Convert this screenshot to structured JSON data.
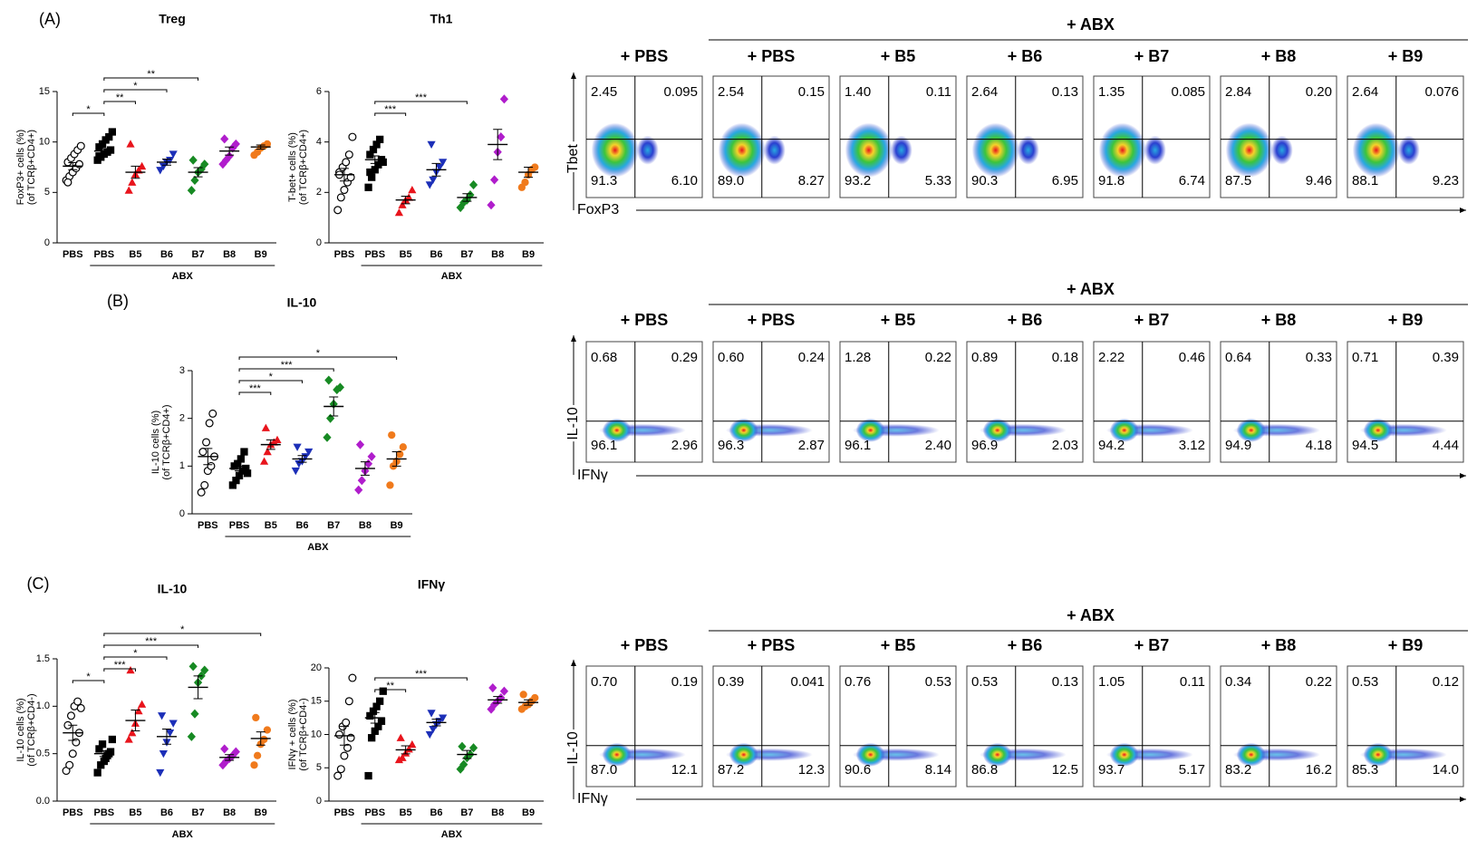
{
  "chart_data": [
    {
      "type": "dot",
      "panel_label": "(A)",
      "title": "Treg",
      "ylabel": [
        "FoxP3+ cells (%)",
        "(of TCRβ+CD4+)"
      ],
      "group_label": "ABX",
      "categories": [
        "PBS",
        "PBS",
        "B5",
        "B6",
        "B7",
        "B8",
        "B9"
      ],
      "markers": [
        "circle-open",
        "square",
        "triangle",
        "triangle-down",
        "diamond",
        "diamond",
        "circle"
      ],
      "colors": [
        "#000000",
        "#000000",
        "#e8141c",
        "#1c2fb8",
        "#178a23",
        "#b01dcc",
        "#f07a1c"
      ],
      "ylim": [
        0,
        15
      ],
      "yticks": [
        0,
        5,
        10,
        15
      ],
      "points": [
        [
          6.2,
          6.6,
          7.0,
          7.4,
          7.8,
          8.0,
          8.4,
          8.8,
          9.2,
          9.6,
          6.0
        ],
        [
          8.2,
          8.5,
          8.8,
          9.0,
          9.2,
          9.5,
          9.8,
          10.2,
          10.5,
          11.0,
          8.6
        ],
        [
          5.2,
          6.0,
          6.8,
          7.2,
          7.6,
          9.8
        ],
        [
          7.2,
          7.6,
          8.0,
          8.2,
          8.8
        ],
        [
          5.2,
          6.2,
          7.0,
          7.3,
          7.8,
          8.2
        ],
        [
          7.8,
          8.2,
          8.6,
          9.4,
          9.8,
          10.3
        ],
        [
          8.7,
          9.0,
          9.4,
          9.6,
          9.8
        ]
      ],
      "means": [
        7.6,
        9.1,
        7.0,
        8.0,
        7.0,
        9.1,
        9.5
      ],
      "sem": [
        0.35,
        0.25,
        0.6,
        0.3,
        0.45,
        0.4,
        0.2
      ],
      "brackets": [
        {
          "groups": [
            0,
            1
          ],
          "label": "*"
        },
        {
          "groups": [
            1,
            2
          ],
          "label": "**"
        },
        {
          "groups": [
            1,
            3
          ],
          "label": "*"
        },
        {
          "groups": [
            1,
            4
          ],
          "label": "**"
        }
      ]
    },
    {
      "type": "dot",
      "title": "Th1",
      "ylabel": [
        "T-bet+ cells (%)",
        "(of TCRβ+CD4+)"
      ],
      "group_label": "ABX",
      "categories": [
        "PBS",
        "PBS",
        "B5",
        "B6",
        "B7",
        "B8",
        "B9"
      ],
      "markers": [
        "circle-open",
        "square",
        "triangle",
        "triangle-down",
        "diamond",
        "diamond",
        "circle"
      ],
      "colors": [
        "#000000",
        "#000000",
        "#e8141c",
        "#1c2fb8",
        "#178a23",
        "#b01dcc",
        "#f07a1c"
      ],
      "ylim": [
        0,
        6
      ],
      "yticks": [
        0,
        2,
        4,
        6
      ],
      "points": [
        [
          1.3,
          1.8,
          2.1,
          2.4,
          2.6,
          2.8,
          3.0,
          3.2,
          3.5,
          4.2,
          2.7
        ],
        [
          2.2,
          2.6,
          2.9,
          3.1,
          3.3,
          3.5,
          3.7,
          3.9,
          4.1,
          3.2,
          2.8
        ],
        [
          1.2,
          1.5,
          1.7,
          1.8,
          2.1
        ],
        [
          2.3,
          2.5,
          2.8,
          3.0,
          3.2,
          3.9
        ],
        [
          1.4,
          1.6,
          1.7,
          1.9,
          2.3
        ],
        [
          1.5,
          2.5,
          3.6,
          4.2,
          5.7
        ],
        [
          2.2,
          2.4,
          2.7,
          2.9,
          3.0
        ]
      ],
      "means": [
        2.7,
        3.3,
        1.7,
        2.9,
        1.8,
        3.9,
        2.8
      ],
      "sem": [
        0.25,
        0.15,
        0.15,
        0.25,
        0.15,
        0.6,
        0.2
      ],
      "brackets": [
        {
          "groups": [
            1,
            2
          ],
          "label": "***"
        },
        {
          "groups": [
            1,
            4
          ],
          "label": "***"
        }
      ]
    },
    {
      "type": "dot",
      "panel_label": "(B)",
      "title": "IL-10",
      "ylabel": [
        "IL-10 cells (%)",
        "(of TCRβ+CD4+)"
      ],
      "group_label": "ABX",
      "categories": [
        "PBS",
        "PBS",
        "B5",
        "B6",
        "B7",
        "B8",
        "B9"
      ],
      "markers": [
        "circle-open",
        "square",
        "triangle",
        "triangle-down",
        "diamond",
        "diamond",
        "circle"
      ],
      "colors": [
        "#000000",
        "#000000",
        "#e8141c",
        "#1c2fb8",
        "#178a23",
        "#b01dcc",
        "#f07a1c"
      ],
      "ylim": [
        0,
        3
      ],
      "yticks": [
        0,
        1,
        2,
        3
      ],
      "points": [
        [
          0.45,
          0.6,
          0.9,
          1.0,
          1.2,
          1.3,
          1.5,
          1.9,
          2.1
        ],
        [
          0.6,
          0.7,
          0.8,
          0.9,
          0.95,
          1.0,
          1.05,
          1.15,
          1.3,
          0.85
        ],
        [
          1.1,
          1.3,
          1.45,
          1.5,
          1.55,
          1.8
        ],
        [
          0.9,
          1.05,
          1.1,
          1.2,
          1.3,
          1.4
        ],
        [
          1.6,
          2.0,
          2.3,
          2.6,
          2.65,
          2.8
        ],
        [
          0.5,
          0.7,
          0.9,
          1.05,
          1.2,
          1.45
        ],
        [
          0.6,
          1.0,
          1.1,
          1.25,
          1.4,
          1.65
        ]
      ],
      "means": [
        1.2,
        0.95,
        1.45,
        1.15,
        2.25,
        0.95,
        1.15
      ],
      "sem": [
        0.17,
        0.05,
        0.1,
        0.07,
        0.2,
        0.14,
        0.15
      ],
      "brackets": [
        {
          "groups": [
            1,
            2
          ],
          "label": "***"
        },
        {
          "groups": [
            1,
            3
          ],
          "label": "*"
        },
        {
          "groups": [
            1,
            4
          ],
          "label": "***"
        },
        {
          "groups": [
            1,
            6
          ],
          "label": "*"
        }
      ]
    },
    {
      "type": "dot",
      "panel_label": "(C)",
      "title": "IL-10",
      "ylabel": [
        "IL-10 cells (%)",
        "(of TCRβ+CD4-)"
      ],
      "group_label": "ABX",
      "categories": [
        "PBS",
        "PBS",
        "B5",
        "B6",
        "B7",
        "B8",
        "B9"
      ],
      "markers": [
        "circle-open",
        "square",
        "triangle",
        "triangle-down",
        "diamond",
        "diamond",
        "circle"
      ],
      "colors": [
        "#000000",
        "#000000",
        "#e8141c",
        "#1c2fb8",
        "#178a23",
        "#b01dcc",
        "#f07a1c"
      ],
      "ylim": [
        0,
        1.5
      ],
      "yticks": [
        {
          "value": 0,
          "label": "0.0"
        },
        0.5,
        {
          "value": 1,
          "label": "1.0"
        },
        1.5
      ],
      "points": [
        [
          0.32,
          0.38,
          0.5,
          0.62,
          0.72,
          0.8,
          0.9,
          1.0,
          1.05,
          0.98
        ],
        [
          0.3,
          0.38,
          0.42,
          0.48,
          0.52,
          0.55,
          0.6,
          0.45,
          0.5,
          0.65
        ],
        [
          0.65,
          0.72,
          0.82,
          0.95,
          1.02,
          1.38
        ],
        [
          0.3,
          0.5,
          0.62,
          0.72,
          0.82,
          0.9
        ],
        [
          0.68,
          0.92,
          1.25,
          1.32,
          1.38,
          1.42
        ],
        [
          0.38,
          0.42,
          0.45,
          0.48,
          0.52,
          0.55
        ],
        [
          0.38,
          0.48,
          0.6,
          0.65,
          0.75,
          0.88
        ]
      ],
      "means": [
        0.72,
        0.5,
        0.85,
        0.68,
        1.2,
        0.46,
        0.66
      ],
      "sem": [
        0.08,
        0.03,
        0.11,
        0.08,
        0.12,
        0.03,
        0.07
      ],
      "brackets": [
        {
          "groups": [
            0,
            1
          ],
          "label": "*"
        },
        {
          "groups": [
            1,
            2
          ],
          "label": "***"
        },
        {
          "groups": [
            1,
            3
          ],
          "label": "*"
        },
        {
          "groups": [
            1,
            4
          ],
          "label": "***"
        },
        {
          "groups": [
            1,
            6
          ],
          "label": "*"
        }
      ]
    },
    {
      "type": "dot",
      "title": "IFNγ",
      "ylabel": [
        "IFNγ + cells (%)",
        "(of TCRβ+CD4-)"
      ],
      "group_label": "ABX",
      "categories": [
        "PBS",
        "PBS",
        "B5",
        "B6",
        "B7",
        "B8",
        "B9"
      ],
      "markers": [
        "circle-open",
        "square",
        "triangle",
        "triangle-down",
        "diamond",
        "diamond",
        "circle"
      ],
      "colors": [
        "#000000",
        "#000000",
        "#e8141c",
        "#1c2fb8",
        "#178a23",
        "#b01dcc",
        "#f07a1c"
      ],
      "ylim": [
        0,
        20
      ],
      "yticks": [
        0,
        5,
        10,
        15,
        20
      ],
      "points": [
        [
          3.8,
          4.8,
          6.8,
          8.0,
          9.5,
          10.0,
          11.2,
          11.8,
          15.0,
          18.5
        ],
        [
          3.8,
          9.5,
          10.5,
          11.2,
          12.0,
          12.8,
          13.5,
          14.2,
          15.0,
          16.5
        ],
        [
          6.2,
          6.5,
          7.2,
          7.8,
          8.5,
          9.5
        ],
        [
          10.0,
          10.8,
          11.5,
          12.0,
          12.5,
          13.2
        ],
        [
          4.8,
          5.5,
          6.5,
          7.0,
          8.0,
          8.2
        ],
        [
          13.8,
          14.5,
          15.0,
          15.5,
          16.5,
          17.0
        ],
        [
          13.8,
          14.2,
          14.5,
          15.0,
          15.5,
          16.0
        ]
      ],
      "means": [
        9.8,
        12.5,
        7.7,
        11.8,
        7.0,
        15.2,
        14.8
      ],
      "sem": [
        1.4,
        0.8,
        0.6,
        0.5,
        0.6,
        0.5,
        0.4
      ],
      "brackets": [
        {
          "groups": [
            1,
            2
          ],
          "label": "**"
        },
        {
          "groups": [
            1,
            4
          ],
          "label": "***"
        }
      ]
    }
  ],
  "flow": [
    {
      "group": "+ ABX",
      "ylabel": "Tbet",
      "xlabel": "FoxP3",
      "panels": [
        {
          "title": "+ PBS",
          "quadrants": [
            "2.45",
            "0.095",
            "91.3",
            "6.10"
          ]
        },
        {
          "title": "+ PBS",
          "quadrants": [
            "2.54",
            "0.15",
            "89.0",
            "8.27"
          ]
        },
        {
          "title": "+ B5",
          "quadrants": [
            "1.40",
            "0.11",
            "93.2",
            "5.33"
          ]
        },
        {
          "title": "+ B6",
          "quadrants": [
            "2.64",
            "0.13",
            "90.3",
            "6.95"
          ]
        },
        {
          "title": "+ B7",
          "quadrants": [
            "1.35",
            "0.085",
            "91.8",
            "6.74"
          ]
        },
        {
          "title": "+ B8",
          "quadrants": [
            "2.84",
            "0.20",
            "87.5",
            "9.46"
          ]
        },
        {
          "title": "+ B9",
          "quadrants": [
            "2.64",
            "0.076",
            "88.1",
            "9.23"
          ]
        }
      ]
    },
    {
      "group": "+ ABX",
      "ylabel": "IL-10",
      "xlabel": "IFNγ",
      "panels": [
        {
          "title": "+ PBS",
          "quadrants": [
            "0.68",
            "0.29",
            "96.1",
            "2.96"
          ]
        },
        {
          "title": "+ PBS",
          "quadrants": [
            "0.60",
            "0.24",
            "96.3",
            "2.87"
          ]
        },
        {
          "title": "+ B5",
          "quadrants": [
            "1.28",
            "0.22",
            "96.1",
            "2.40"
          ]
        },
        {
          "title": "+ B6",
          "quadrants": [
            "0.89",
            "0.18",
            "96.9",
            "2.03"
          ]
        },
        {
          "title": "+ B7",
          "quadrants": [
            "2.22",
            "0.46",
            "94.2",
            "3.12"
          ]
        },
        {
          "title": "+ B8",
          "quadrants": [
            "0.64",
            "0.33",
            "94.9",
            "4.18"
          ]
        },
        {
          "title": "+ B9",
          "quadrants": [
            "0.71",
            "0.39",
            "94.5",
            "4.44"
          ]
        }
      ]
    },
    {
      "group": "+ ABX",
      "ylabel": "IL-10",
      "xlabel": "IFNγ",
      "panels": [
        {
          "title": "+ PBS",
          "quadrants": [
            "0.70",
            "0.19",
            "87.0",
            "12.1"
          ]
        },
        {
          "title": "+ PBS",
          "quadrants": [
            "0.39",
            "0.041",
            "87.2",
            "12.3"
          ]
        },
        {
          "title": "+ B5",
          "quadrants": [
            "0.76",
            "0.53",
            "90.6",
            "8.14"
          ]
        },
        {
          "title": "+ B6",
          "quadrants": [
            "0.53",
            "0.13",
            "86.8",
            "12.5"
          ]
        },
        {
          "title": "+ B7",
          "quadrants": [
            "1.05",
            "0.11",
            "93.7",
            "5.17"
          ]
        },
        {
          "title": "+ B8",
          "quadrants": [
            "0.34",
            "0.22",
            "83.2",
            "16.2"
          ]
        },
        {
          "title": "+ B9",
          "quadrants": [
            "0.53",
            "0.12",
            "85.3",
            "14.0"
          ]
        }
      ]
    }
  ]
}
